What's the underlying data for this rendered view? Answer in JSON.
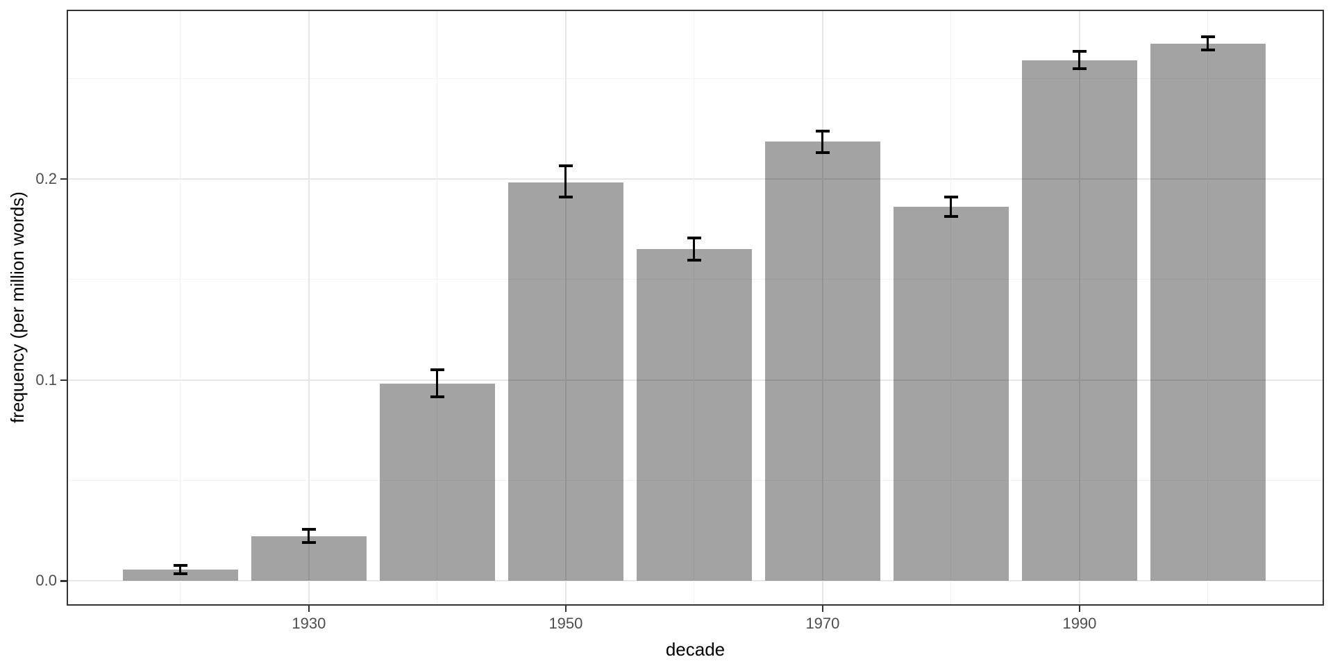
{
  "chart_data": {
    "type": "bar",
    "title": "",
    "xlabel": "decade",
    "ylabel": "frequency (per million words)",
    "categories": [
      1920,
      1930,
      1940,
      1950,
      1960,
      1970,
      1980,
      1990,
      2000
    ],
    "values": [
      0.0055,
      0.0221,
      0.0981,
      0.1983,
      0.1651,
      0.2186,
      0.1862,
      0.2591,
      0.2674
    ],
    "error_low": [
      0.0035,
      0.019,
      0.0915,
      0.191,
      0.1596,
      0.2131,
      0.1813,
      0.2549,
      0.2642
    ],
    "error_high": [
      0.0076,
      0.0256,
      0.105,
      0.2066,
      0.1707,
      0.2238,
      0.191,
      0.2636,
      0.2708
    ],
    "x_tick_years": [
      1930,
      1950,
      1970,
      1990
    ],
    "x_tick_labels": [
      "1930",
      "1950",
      "1970",
      "1990"
    ],
    "x_minor_years": [
      1920,
      1940,
      1960,
      1980,
      2000
    ],
    "y_tick_values": [
      0.0,
      0.1,
      0.2
    ],
    "y_tick_labels": [
      "0.0",
      "0.1",
      "0.2"
    ],
    "y_minor_values": [
      0.05,
      0.15,
      0.25
    ],
    "xlim": [
      1911.14,
      2009.03
    ],
    "ylim": [
      -0.01243,
      0.28428
    ],
    "bar_width_years": 9,
    "grid": true,
    "legend": false,
    "colors": {
      "bar_fill": "rgba(0,0,0,0.36)",
      "bar_fill_hex": "#a4a4a4",
      "error_bar": "#000000",
      "grid_major": "#e7e7e7",
      "grid_minor": "#f2f2f2",
      "panel_border": "#333333",
      "tick_mark": "#333333",
      "tick_label": "#4d4d4d",
      "axis_title": "#000000",
      "background": "#ffffff"
    }
  }
}
